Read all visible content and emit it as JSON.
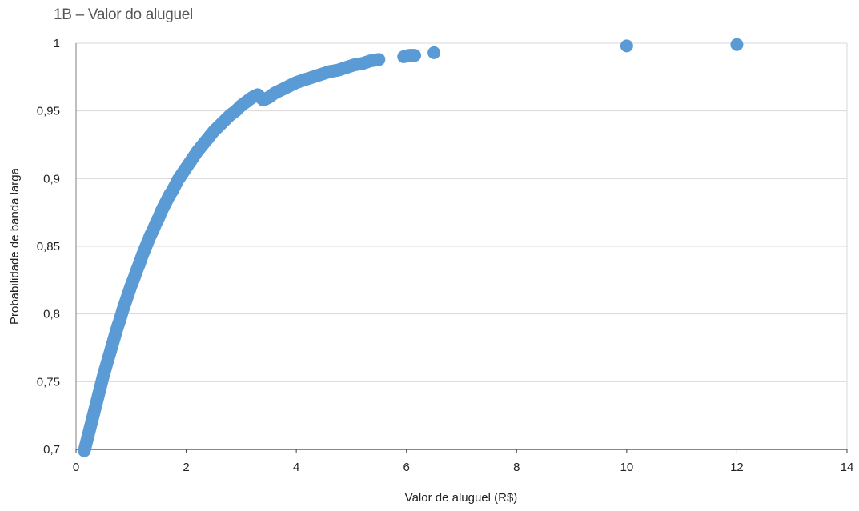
{
  "chart_data": {
    "type": "scatter",
    "title": "1B – Valor do aluguel",
    "xlabel": "Valor de aluguel (R$)",
    "ylabel": "Probabilidade de banda larga",
    "xlim": [
      0,
      14
    ],
    "ylim": [
      0.7,
      1
    ],
    "x_ticks": [
      "0",
      "2",
      "4",
      "6",
      "8",
      "10",
      "12",
      "14"
    ],
    "y_ticks": [
      "0,7",
      "0,75",
      "0,8",
      "0,85",
      "0,9",
      "0,95",
      "1"
    ],
    "grid": "horizontal",
    "marker_color": "#5b9bd5",
    "series": [
      {
        "points": [
          [
            0.15,
            0.699
          ],
          [
            0.2,
            0.707
          ],
          [
            0.25,
            0.715
          ],
          [
            0.3,
            0.723
          ],
          [
            0.35,
            0.731
          ],
          [
            0.4,
            0.739
          ],
          [
            0.45,
            0.747
          ],
          [
            0.5,
            0.755
          ],
          [
            0.55,
            0.762
          ],
          [
            0.6,
            0.769
          ],
          [
            0.65,
            0.776
          ],
          [
            0.7,
            0.783
          ],
          [
            0.75,
            0.79
          ],
          [
            0.8,
            0.796
          ],
          [
            0.85,
            0.803
          ],
          [
            0.9,
            0.809
          ],
          [
            0.95,
            0.815
          ],
          [
            1.0,
            0.821
          ],
          [
            1.05,
            0.826
          ],
          [
            1.1,
            0.832
          ],
          [
            1.15,
            0.837
          ],
          [
            1.2,
            0.843
          ],
          [
            1.25,
            0.848
          ],
          [
            1.3,
            0.853
          ],
          [
            1.35,
            0.858
          ],
          [
            1.4,
            0.862
          ],
          [
            1.45,
            0.867
          ],
          [
            1.5,
            0.871
          ],
          [
            1.55,
            0.876
          ],
          [
            1.6,
            0.88
          ],
          [
            1.65,
            0.884
          ],
          [
            1.7,
            0.888
          ],
          [
            1.75,
            0.891
          ],
          [
            1.8,
            0.895
          ],
          [
            1.85,
            0.899
          ],
          [
            1.9,
            0.902
          ],
          [
            1.95,
            0.905
          ],
          [
            2.0,
            0.908
          ],
          [
            2.1,
            0.914
          ],
          [
            2.2,
            0.92
          ],
          [
            2.3,
            0.925
          ],
          [
            2.4,
            0.93
          ],
          [
            2.5,
            0.935
          ],
          [
            2.6,
            0.939
          ],
          [
            2.7,
            0.943
          ],
          [
            2.8,
            0.947
          ],
          [
            2.9,
            0.95
          ],
          [
            3.0,
            0.954
          ],
          [
            3.1,
            0.957
          ],
          [
            3.2,
            0.96
          ],
          [
            3.3,
            0.962
          ],
          [
            3.4,
            0.958
          ],
          [
            3.5,
            0.96
          ],
          [
            3.6,
            0.963
          ],
          [
            3.7,
            0.965
          ],
          [
            3.8,
            0.967
          ],
          [
            3.9,
            0.969
          ],
          [
            4.0,
            0.971
          ],
          [
            4.15,
            0.973
          ],
          [
            4.3,
            0.975
          ],
          [
            4.45,
            0.977
          ],
          [
            4.6,
            0.979
          ],
          [
            4.75,
            0.98
          ],
          [
            4.9,
            0.982
          ],
          [
            5.05,
            0.984
          ],
          [
            5.2,
            0.985
          ],
          [
            5.35,
            0.987
          ],
          [
            5.5,
            0.988
          ],
          [
            5.95,
            0.99
          ],
          [
            6.05,
            0.991
          ],
          [
            6.15,
            0.991
          ],
          [
            6.5,
            0.993
          ],
          [
            10.0,
            0.998
          ],
          [
            12.0,
            0.999
          ]
        ]
      }
    ]
  }
}
